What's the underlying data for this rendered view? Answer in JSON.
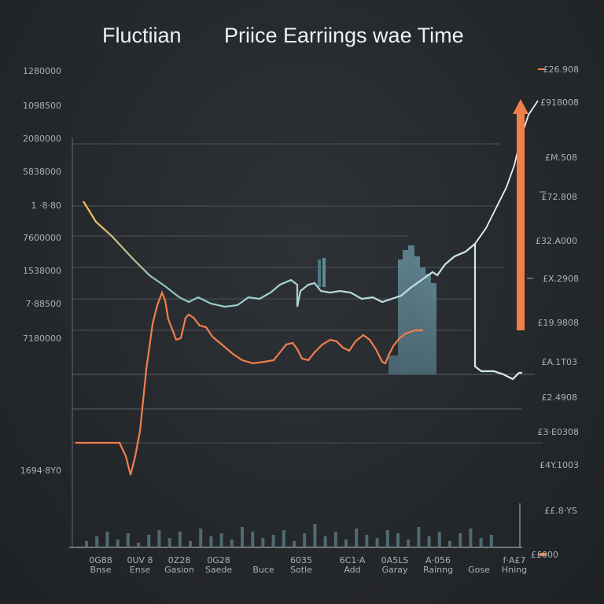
{
  "chart_data": {
    "type": "line",
    "title_left": "Fluctiian",
    "title_right": "Priice Earriings wae Time",
    "left_ticks": [
      "1280000",
      "1098500",
      "2080000",
      "5838000",
      "1 ·8·80",
      "7600000",
      "1538000",
      "7·88500",
      "7180000",
      "1694·8Y0"
    ],
    "right_ticks": [
      "£26.908",
      "£918008",
      "£M.508",
      "£72.808",
      "£32.A000",
      "£X.2908",
      "£19.9808",
      "£A.1T03",
      "£2.4908",
      "£3·E0308",
      "£4Y.1003",
      "££.8·YS",
      "££000"
    ],
    "x_ticks": [
      {
        "top": "0G88",
        "bottom": "Bnse"
      },
      {
        "top": "0UV 8",
        "bottom": "Ense"
      },
      {
        "top": "0Z28",
        "bottom": "Gasion"
      },
      {
        "top": "0G28",
        "bottom": "Saede"
      },
      {
        "top": "",
        "bottom": "Buce"
      },
      {
        "top": "6035",
        "bottom": "Sotle"
      },
      {
        "top": "6C1·A",
        "bottom": "Add"
      },
      {
        "top": "0A5LS",
        "bottom": "Garay"
      },
      {
        "top": "A·056",
        "bottom": "Rainng"
      },
      {
        "top": "",
        "bottom": "Gose"
      },
      {
        "top": "f·A£7",
        "bottom": "Hning"
      }
    ],
    "series": [
      {
        "color": "#f07f4c",
        "x": [
          0,
          6,
          14,
          22,
          30,
          38,
          46,
          48,
          52,
          56,
          60,
          64,
          68,
          72,
          74,
          78,
          82,
          86,
          90,
          94,
          98,
          102,
          106,
          110,
          114,
          118,
          122,
          126,
          130,
          134,
          138,
          142,
          146,
          150,
          154,
          158,
          162,
          166,
          170,
          174,
          178,
          182,
          186,
          190,
          194,
          198,
          202,
          206,
          210
        ],
        "y": [
          0.1,
          0.1,
          0.1,
          0.1,
          0.1,
          0.1,
          0.09,
          0.06,
          0.04,
          0.05,
          0.08,
          0.18,
          0.34,
          0.55,
          0.6,
          0.66,
          0.61,
          0.58,
          0.53,
          0.56,
          0.55,
          0.52,
          0.5,
          0.51,
          0.49,
          0.48,
          0.49,
          0.47,
          0.46,
          0.45,
          0.47,
          0.49,
          0.5,
          0.5,
          0.49,
          0.48,
          0.47,
          0.48,
          0.49,
          0.5,
          0.5,
          0.5,
          0.5,
          0.5,
          0.5,
          0.5,
          0.5,
          0.5,
          0.5
        ]
      }
    ],
    "ylim": [
      0,
      1
    ],
    "grid": true,
    "colors": {
      "background": "#25282b",
      "orange": "#f07f4c",
      "teal": "#7fb3bd",
      "yellow": "#e6c65a",
      "bars": "#4a6570"
    }
  }
}
